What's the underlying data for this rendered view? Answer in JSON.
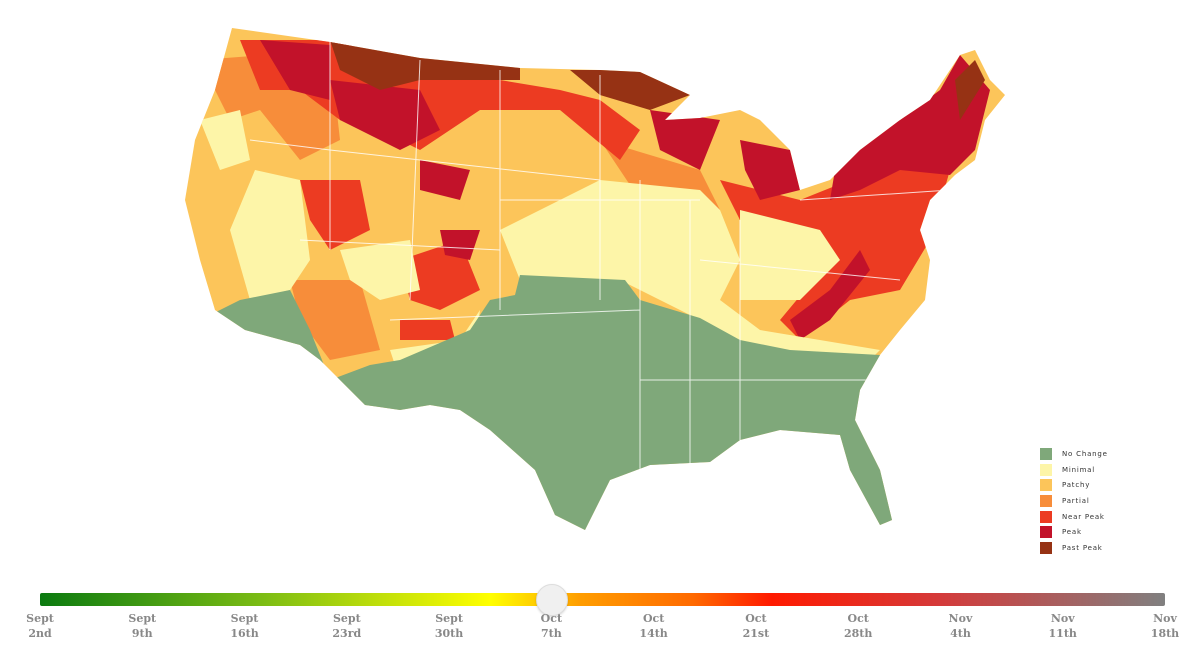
{
  "legend": [
    {
      "label": "No Change",
      "color": "#7fa87a"
    },
    {
      "label": "Minimal",
      "color": "#fdf5a8"
    },
    {
      "label": "Patchy",
      "color": "#fcc55a"
    },
    {
      "label": "Partial",
      "color": "#f78d3a"
    },
    {
      "label": "Near Peak",
      "color": "#ec3b22"
    },
    {
      "label": "Peak",
      "color": "#c2122a"
    },
    {
      "label": "Past Peak",
      "color": "#963214"
    }
  ],
  "slider": {
    "selected_index": 5,
    "ticks": [
      {
        "month": "Sept",
        "day": "2nd"
      },
      {
        "month": "Sept",
        "day": "9th"
      },
      {
        "month": "Sept",
        "day": "16th"
      },
      {
        "month": "Sept",
        "day": "23rd"
      },
      {
        "month": "Sept",
        "day": "30th"
      },
      {
        "month": "Oct",
        "day": "7th"
      },
      {
        "month": "Oct",
        "day": "14th"
      },
      {
        "month": "Oct",
        "day": "21st"
      },
      {
        "month": "Oct",
        "day": "28th"
      },
      {
        "month": "Nov",
        "day": "4th"
      },
      {
        "month": "Nov",
        "day": "11th"
      },
      {
        "month": "Nov",
        "day": "18th"
      }
    ]
  }
}
